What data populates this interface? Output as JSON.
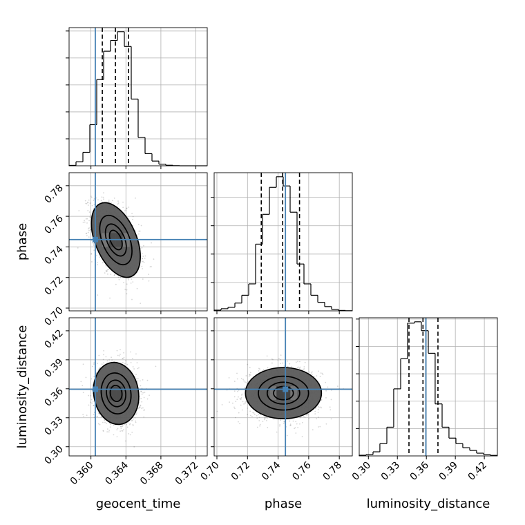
{
  "chart_data": {
    "type": "corner",
    "parameters": [
      "geocent_time",
      "phase",
      "luminosity_distance"
    ],
    "x_axis_labels": {
      "geocent_time": "geocent_time",
      "phase": "phase",
      "luminosity_distance": "luminosity_distance"
    },
    "y_axis_labels": {
      "phase": "phase",
      "luminosity_distance": "luminosity_distance"
    },
    "ranges": {
      "geocent_time": [
        0.3575,
        0.3733
      ],
      "phase": [
        0.6982,
        0.7885
      ],
      "luminosity_distance": [
        0.2905,
        0.4335
      ]
    },
    "ticks": {
      "geocent_time": [
        0.36,
        0.364,
        0.368,
        0.372
      ],
      "phase": [
        0.7,
        0.72,
        0.74,
        0.76,
        0.78
      ],
      "luminosity_distance": [
        0.3,
        0.33,
        0.36,
        0.39,
        0.42
      ]
    },
    "tick_labels": {
      "geocent_time": [
        "0.360",
        "0.364",
        "0.368",
        "0.372"
      ],
      "phase": [
        "0.70",
        "0.72",
        "0.74",
        "0.76",
        "0.78"
      ],
      "luminosity_distance": [
        "0.30",
        "0.33",
        "0.36",
        "0.39",
        "0.42"
      ]
    },
    "injection": {
      "geocent_time": 0.3605,
      "phase": 0.7448,
      "luminosity_distance": 0.3595
    },
    "quantiles": {
      "geocent_time": [
        0.3613,
        0.3628,
        0.3643
      ],
      "phase": [
        0.729,
        0.743,
        0.754
      ],
      "luminosity_distance": [
        0.342,
        0.3565,
        0.372
      ]
    },
    "histograms": {
      "geocent_time": {
        "edges": [
          0.3575,
          0.35829,
          0.35908,
          0.35987,
          0.36066,
          0.36145,
          0.36224,
          0.36303,
          0.36382,
          0.36461,
          0.3654,
          0.36619,
          0.36698,
          0.36777,
          0.36856,
          0.36935,
          0.37014,
          0.37093,
          0.37172,
          0.37251,
          0.3733
        ],
        "counts": [
          0.3,
          3.0,
          10.0,
          30.5,
          64.0,
          85.0,
          93.0,
          99.5,
          88.5,
          49.5,
          21.0,
          9.0,
          3.5,
          1.2,
          0.4,
          0.1,
          0,
          0,
          0,
          0
        ]
      },
      "phase": {
        "edges": [
          0.6982,
          0.70272,
          0.70723,
          0.71175,
          0.71626,
          0.72078,
          0.72529,
          0.72981,
          0.73432,
          0.73884,
          0.74335,
          0.74787,
          0.75238,
          0.7569,
          0.76141,
          0.76593,
          0.77044,
          0.77496,
          0.77947,
          0.78399,
          0.7885
        ],
        "counts": [
          0.5,
          1.5,
          2.5,
          5.5,
          11.0,
          19.0,
          47.0,
          68.0,
          87.0,
          94.5,
          88.0,
          69.5,
          33.0,
          19.0,
          11.0,
          6.0,
          3.0,
          1.0,
          0.3,
          0.1
        ]
      },
      "luminosity_distance": {
        "edges": [
          0.2905,
          0.2976,
          0.3048,
          0.3119,
          0.3191,
          0.3262,
          0.3334,
          0.3405,
          0.3477,
          0.3548,
          0.362,
          0.3691,
          0.3763,
          0.3834,
          0.3906,
          0.3977,
          0.4049,
          0.412,
          0.4192,
          0.4263,
          0.4335
        ],
        "counts": [
          0.5,
          1.0,
          3.0,
          9.0,
          21.0,
          49.0,
          71.0,
          97.0,
          98.0,
          91.5,
          75.0,
          38.0,
          21.0,
          13.0,
          9.0,
          6.0,
          4.0,
          2.0,
          1.0,
          0.4
        ]
      }
    },
    "joint": {
      "phase|geocent_time": {
        "mean": [
          0.36285,
          0.7445
        ],
        "sd": [
          0.00135,
          0.0118
        ],
        "rho": -0.45
      },
      "luminosity_distance|geocent_time": {
        "mean": [
          0.36288,
          0.3552
        ],
        "sd": [
          0.00125,
          0.0155
        ],
        "rho": -0.1
      },
      "luminosity_distance|phase": {
        "mean": [
          0.7435,
          0.3555
        ],
        "sd": [
          0.012,
          0.0128
        ],
        "rho": 0.0
      }
    },
    "grid": true,
    "colors": {
      "truth": "#4682b4",
      "contour": "#000000",
      "hist": "#000000",
      "grid": "#b0b0b0"
    }
  }
}
